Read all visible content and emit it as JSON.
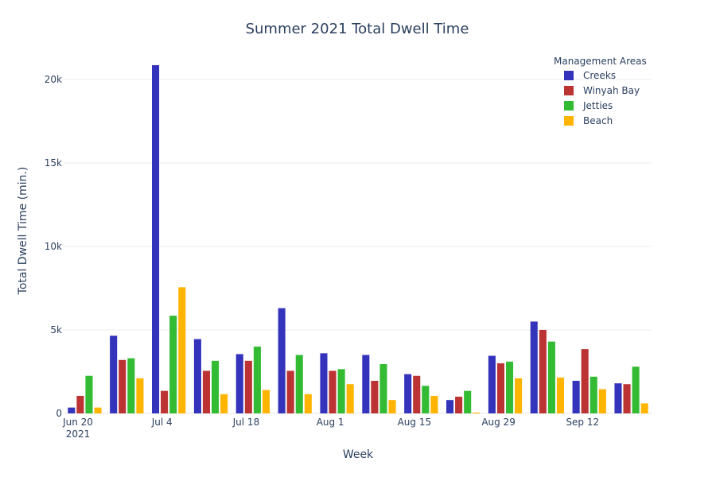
{
  "chart_data": {
    "type": "bar",
    "title": "Summer 2021 Total Dwell Time",
    "xlabel": "Week",
    "ylabel": "Total Dwell Time (min.)",
    "ylim": [
      0,
      21800
    ],
    "y_ticks": [
      0,
      5000,
      10000,
      15000,
      20000
    ],
    "y_tick_labels": [
      "0",
      "5k",
      "10k",
      "15k",
      "20k"
    ],
    "grid": true,
    "legend_title": "Management Areas",
    "legend_position": "top-right",
    "categories": [
      "2021-06-20",
      "2021-06-27",
      "2021-07-04",
      "2021-07-11",
      "2021-07-18",
      "2021-07-25",
      "2021-08-01",
      "2021-08-08",
      "2021-08-15",
      "2021-08-22",
      "2021-08-29",
      "2021-09-05",
      "2021-09-12",
      "2021-09-19"
    ],
    "x_ticks": [
      {
        "category_index": 0,
        "line1": "Jun 20",
        "line2": "2021"
      },
      {
        "category_index": 2,
        "line1": "Jul 4",
        "line2": ""
      },
      {
        "category_index": 4,
        "line1": "Jul 18",
        "line2": ""
      },
      {
        "category_index": 6,
        "line1": "Aug 1",
        "line2": ""
      },
      {
        "category_index": 8,
        "line1": "Aug 15",
        "line2": ""
      },
      {
        "category_index": 10,
        "line1": "Aug 29",
        "line2": ""
      },
      {
        "category_index": 12,
        "line1": "Sep 12",
        "line2": ""
      }
    ],
    "series": [
      {
        "name": "Creeks",
        "color": "#3333bb",
        "values": [
          350,
          4650,
          20850,
          4450,
          3550,
          6300,
          3600,
          3500,
          2350,
          800,
          3450,
          5500,
          1950,
          1800
        ]
      },
      {
        "name": "Winyah Bay",
        "color": "#bb3333",
        "values": [
          1050,
          3200,
          1350,
          2550,
          3150,
          2550,
          2550,
          1950,
          2250,
          1000,
          3000,
          5000,
          3850,
          1750
        ]
      },
      {
        "name": "Jetties",
        "color": "#33bb33",
        "values": [
          2250,
          3300,
          5850,
          3150,
          4000,
          3500,
          2650,
          2950,
          1650,
          1350,
          3100,
          4300,
          2200,
          2800
        ]
      },
      {
        "name": "Beach",
        "color": "#ffb400",
        "values": [
          350,
          2100,
          7550,
          1150,
          1400,
          1150,
          1750,
          800,
          1050,
          50,
          2100,
          2150,
          1450,
          600
        ]
      }
    ]
  }
}
